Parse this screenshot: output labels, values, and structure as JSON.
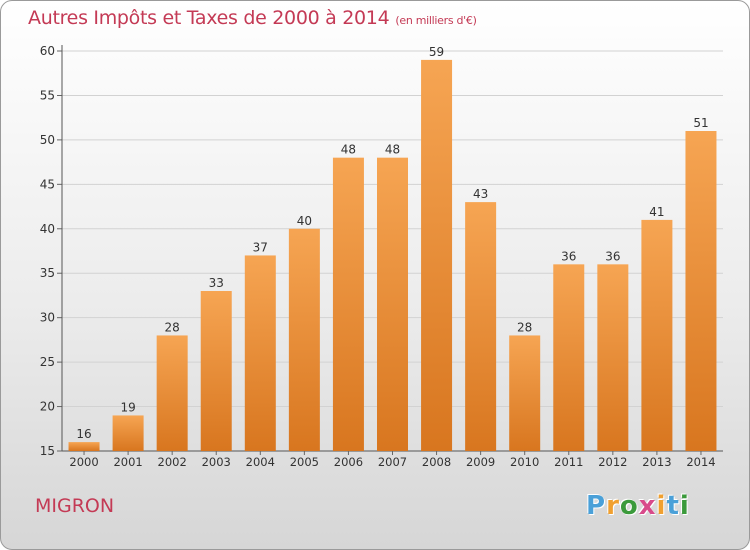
{
  "title": "Autres Impôts et Taxes de 2000 à 2014",
  "unit_note": "(en milliers d'€)",
  "commune": "MIGRON",
  "logo": {
    "letters": [
      "P",
      "r",
      "o",
      "x",
      "i",
      "t",
      "i"
    ]
  },
  "colors": {
    "title": "#c43a55",
    "bar_light": "#f6a553",
    "bar_dark": "#d8761f"
  },
  "chart_data": {
    "type": "bar",
    "title": "Autres Impôts et Taxes de 2000 à 2014",
    "unit": "(en milliers d'€)",
    "categories": [
      "2000",
      "2001",
      "2002",
      "2003",
      "2004",
      "2005",
      "2006",
      "2007",
      "2008",
      "2009",
      "2010",
      "2011",
      "2012",
      "2013",
      "2014"
    ],
    "values": [
      16,
      19,
      28,
      33,
      37,
      40,
      48,
      48,
      59,
      43,
      28,
      36,
      36,
      41,
      51
    ],
    "ylim": [
      15,
      60
    ],
    "yticks": [
      15,
      20,
      25,
      30,
      35,
      40,
      45,
      50,
      55,
      60
    ],
    "grid": true,
    "data_labels": true
  }
}
